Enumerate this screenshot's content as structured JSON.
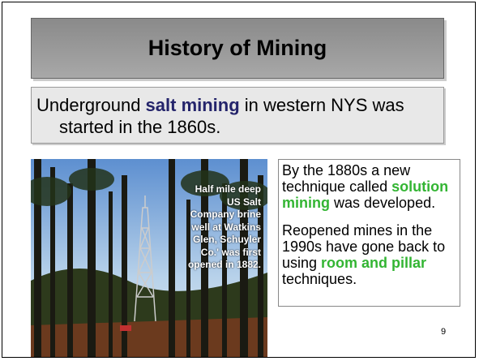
{
  "title": "History of Mining",
  "intro": {
    "segments": [
      "Underground ",
      "salt mining",
      " in western NYS was started in the 1860s."
    ]
  },
  "photo": {
    "caption_lines": [
      "Half mile deep",
      "US Salt",
      "Company brine",
      "well at Watkins",
      "Glen, Schuyler",
      "Co.' was first",
      "opened in 1882."
    ]
  },
  "side_box": {
    "paragraphs": [
      [
        "By the 1880s a new technique called ",
        "solution mining",
        " was developed."
      ],
      [
        "Reopened mines in the 1990s have gone back to using ",
        "room and pillar",
        " techniques."
      ]
    ]
  },
  "page_number": "9"
}
